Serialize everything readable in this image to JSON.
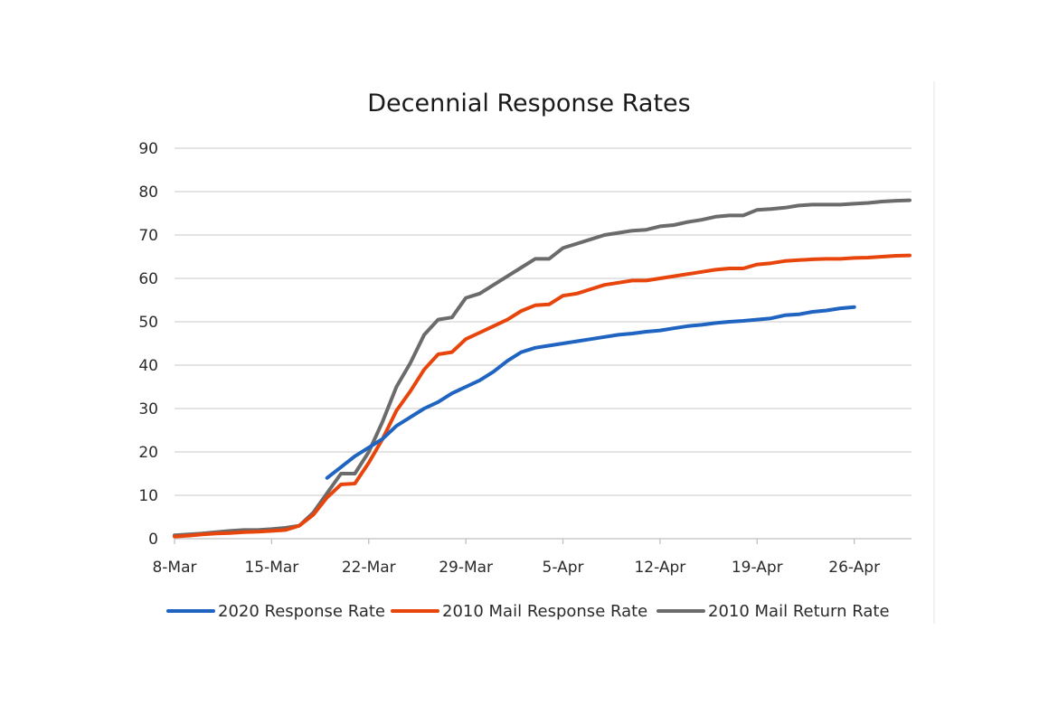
{
  "chart_data": {
    "type": "line",
    "title": "Decennial Response Rates",
    "xlabel": "",
    "ylabel": "",
    "ylim": [
      0,
      90
    ],
    "yticks": [
      0,
      10,
      20,
      30,
      40,
      50,
      60,
      70,
      80,
      90
    ],
    "xticks": [
      "8-Mar",
      "15-Mar",
      "22-Mar",
      "29-Mar",
      "5-Apr",
      "12-Apr",
      "19-Apr",
      "26-Apr"
    ],
    "grid": true,
    "legend_position": "bottom",
    "series": [
      {
        "name": "2020 Response Rate",
        "color": "#1f64c0",
        "x": [
          "19-Mar",
          "20-Mar",
          "21-Mar",
          "22-Mar",
          "23-Mar",
          "24-Mar",
          "25-Mar",
          "26-Mar",
          "27-Mar",
          "28-Mar",
          "29-Mar",
          "30-Mar",
          "31-Mar",
          "1-Apr",
          "2-Apr",
          "3-Apr",
          "4-Apr",
          "5-Apr",
          "6-Apr",
          "7-Apr",
          "8-Apr",
          "9-Apr",
          "10-Apr",
          "11-Apr",
          "12-Apr",
          "13-Apr",
          "14-Apr",
          "15-Apr",
          "16-Apr",
          "17-Apr",
          "18-Apr",
          "19-Apr",
          "20-Apr",
          "21-Apr",
          "22-Apr",
          "23-Apr",
          "24-Apr",
          "25-Apr",
          "26-Apr"
        ],
        "values": [
          14.0,
          16.5,
          19.0,
          21.0,
          23.0,
          26.0,
          28.0,
          30.0,
          31.5,
          33.5,
          35.0,
          36.5,
          38.5,
          41.0,
          43.0,
          44.0,
          44.5,
          45.0,
          45.5,
          46.0,
          46.5,
          47.0,
          47.3,
          47.7,
          48.0,
          48.5,
          49.0,
          49.3,
          49.7,
          50.0,
          50.2,
          50.5,
          50.8,
          51.5,
          51.7,
          52.3,
          52.6,
          53.1,
          53.4
        ]
      },
      {
        "name": "2010 Mail Response Rate",
        "color": "#e8450c",
        "x": [
          "8-Mar",
          "9-Mar",
          "10-Mar",
          "11-Mar",
          "12-Mar",
          "13-Mar",
          "14-Mar",
          "15-Mar",
          "16-Mar",
          "17-Mar",
          "18-Mar",
          "19-Mar",
          "20-Mar",
          "21-Mar",
          "22-Mar",
          "23-Mar",
          "24-Mar",
          "25-Mar",
          "26-Mar",
          "27-Mar",
          "28-Mar",
          "29-Mar",
          "30-Mar",
          "31-Mar",
          "1-Apr",
          "2-Apr",
          "3-Apr",
          "4-Apr",
          "5-Apr",
          "6-Apr",
          "7-Apr",
          "8-Apr",
          "9-Apr",
          "10-Apr",
          "11-Apr",
          "12-Apr",
          "13-Apr",
          "14-Apr",
          "15-Apr",
          "16-Apr",
          "17-Apr",
          "18-Apr",
          "19-Apr",
          "20-Apr",
          "21-Apr",
          "22-Apr",
          "23-Apr",
          "24-Apr",
          "25-Apr",
          "26-Apr",
          "27-Apr",
          "28-Apr",
          "29-Apr",
          "30-Apr"
        ],
        "values": [
          0.5,
          0.7,
          1.0,
          1.2,
          1.3,
          1.5,
          1.6,
          1.8,
          2.0,
          3.0,
          5.5,
          9.5,
          12.5,
          12.7,
          17.5,
          23.0,
          29.5,
          34.0,
          39.0,
          42.5,
          43.0,
          46.0,
          47.5,
          49.0,
          50.5,
          52.5,
          53.8,
          54.0,
          56.0,
          56.5,
          57.5,
          58.5,
          59.0,
          59.5,
          59.5,
          60.0,
          60.5,
          61.0,
          61.5,
          62.0,
          62.3,
          62.3,
          63.2,
          63.5,
          64.0,
          64.2,
          64.4,
          64.5,
          64.5,
          64.7,
          64.8,
          65.0,
          65.2,
          65.3
        ]
      },
      {
        "name": "2010 Mail Return Rate",
        "color": "#6b6b6b",
        "x": [
          "8-Mar",
          "9-Mar",
          "10-Mar",
          "11-Mar",
          "12-Mar",
          "13-Mar",
          "14-Mar",
          "15-Mar",
          "16-Mar",
          "17-Mar",
          "18-Mar",
          "19-Mar",
          "20-Mar",
          "21-Mar",
          "22-Mar",
          "23-Mar",
          "24-Mar",
          "25-Mar",
          "26-Mar",
          "27-Mar",
          "28-Mar",
          "29-Mar",
          "30-Mar",
          "31-Mar",
          "1-Apr",
          "2-Apr",
          "3-Apr",
          "4-Apr",
          "5-Apr",
          "6-Apr",
          "7-Apr",
          "8-Apr",
          "9-Apr",
          "10-Apr",
          "11-Apr",
          "12-Apr",
          "13-Apr",
          "14-Apr",
          "15-Apr",
          "16-Apr",
          "17-Apr",
          "18-Apr",
          "19-Apr",
          "20-Apr",
          "21-Apr",
          "22-Apr",
          "23-Apr",
          "24-Apr",
          "25-Apr",
          "26-Apr",
          "27-Apr",
          "28-Apr",
          "29-Apr",
          "30-Apr"
        ],
        "values": [
          0.8,
          1.0,
          1.2,
          1.5,
          1.8,
          2.0,
          2.0,
          2.2,
          2.5,
          3.0,
          6.0,
          10.5,
          15.0,
          15.0,
          20.0,
          27.0,
          35.0,
          40.5,
          47.0,
          50.5,
          51.0,
          55.5,
          56.5,
          58.5,
          60.5,
          62.5,
          64.5,
          64.5,
          67.0,
          68.0,
          69.0,
          70.0,
          70.5,
          71.0,
          71.2,
          72.0,
          72.3,
          73.0,
          73.5,
          74.2,
          74.5,
          74.5,
          75.8,
          76.0,
          76.3,
          76.8,
          77.0,
          77.0,
          77.0,
          77.2,
          77.4,
          77.7,
          77.9,
          78.0
        ]
      }
    ]
  }
}
